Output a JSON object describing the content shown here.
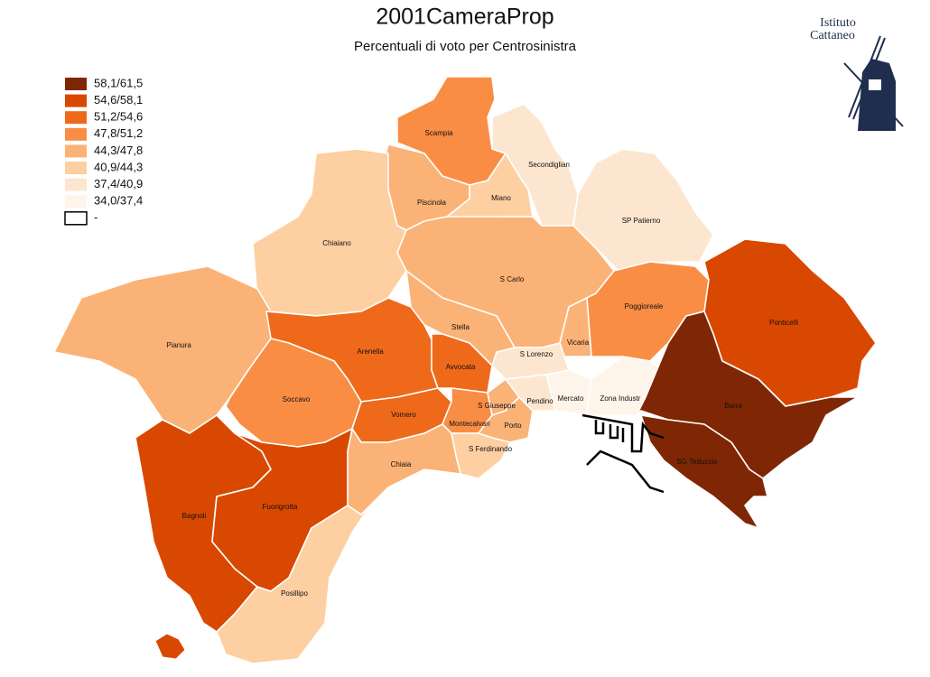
{
  "title": "2001CameraProp",
  "subtitle": "Percentuali di voto per Centrosinistra",
  "logo": {
    "line1": "Istituto",
    "line2": "Cattaneo"
  },
  "legend": [
    {
      "label": "58,1/61,5",
      "color": "#7f2704"
    },
    {
      "label": "54,6/58,1",
      "color": "#d94801"
    },
    {
      "label": "51,2/54,6",
      "color": "#ee6a1a"
    },
    {
      "label": "47,8/51,2",
      "color": "#f98d44"
    },
    {
      "label": "44,3/47,8",
      "color": "#fbb276"
    },
    {
      "label": "40,9/44,3",
      "color": "#fdcfa1"
    },
    {
      "label": "37,4/40,9",
      "color": "#fde6cf"
    },
    {
      "label": "34,0/37,4",
      "color": "#fff4ea"
    },
    {
      "label": "-",
      "color": "#ffffff"
    }
  ],
  "districts": [
    {
      "name": "Scampia",
      "color": "#f98d44"
    },
    {
      "name": "Secondiglian",
      "color": "#fde6cf"
    },
    {
      "name": "Miano",
      "color": "#fdcfa1"
    },
    {
      "name": "Piscinola",
      "color": "#fbb276"
    },
    {
      "name": "Chiaiano",
      "color": "#fdcfa1"
    },
    {
      "name": "SP Patierno",
      "color": "#fde6cf"
    },
    {
      "name": "S Carlo",
      "color": "#fbb276"
    },
    {
      "name": "Poggioreale",
      "color": "#f98d44"
    },
    {
      "name": "Ponticelli",
      "color": "#d94801"
    },
    {
      "name": "Pianura",
      "color": "#fbb276"
    },
    {
      "name": "Vicaria",
      "color": "#fbb276"
    },
    {
      "name": "S Lorenzo",
      "color": "#fde6cf"
    },
    {
      "name": "Stella",
      "color": "#fbb276"
    },
    {
      "name": "Arenella",
      "color": "#ee6a1a"
    },
    {
      "name": "Avvocata",
      "color": "#ee6a1a"
    },
    {
      "name": "Soccavo",
      "color": "#f98d44"
    },
    {
      "name": "Vomero",
      "color": "#ee6a1a"
    },
    {
      "name": "Montecalvari",
      "color": "#f98d44"
    },
    {
      "name": "S Giuseppe",
      "color": "#fbb276"
    },
    {
      "name": "Porto",
      "color": "#fbb276"
    },
    {
      "name": "Pendino",
      "color": "#fde6cf"
    },
    {
      "name": "Mercato",
      "color": "#fff4ea"
    },
    {
      "name": "Zona Industr",
      "color": "#fff4ea"
    },
    {
      "name": "S Ferdinando",
      "color": "#fdcfa1"
    },
    {
      "name": "Chiaia",
      "color": "#fbb276"
    },
    {
      "name": "Barra",
      "color": "#7f2704"
    },
    {
      "name": "SG Teduccio",
      "color": "#7f2704"
    },
    {
      "name": "Bagnoli",
      "color": "#d94801"
    },
    {
      "name": "Fuorigrotta",
      "color": "#d94801"
    },
    {
      "name": "Posillipo",
      "color": "#fdcfa1"
    }
  ]
}
